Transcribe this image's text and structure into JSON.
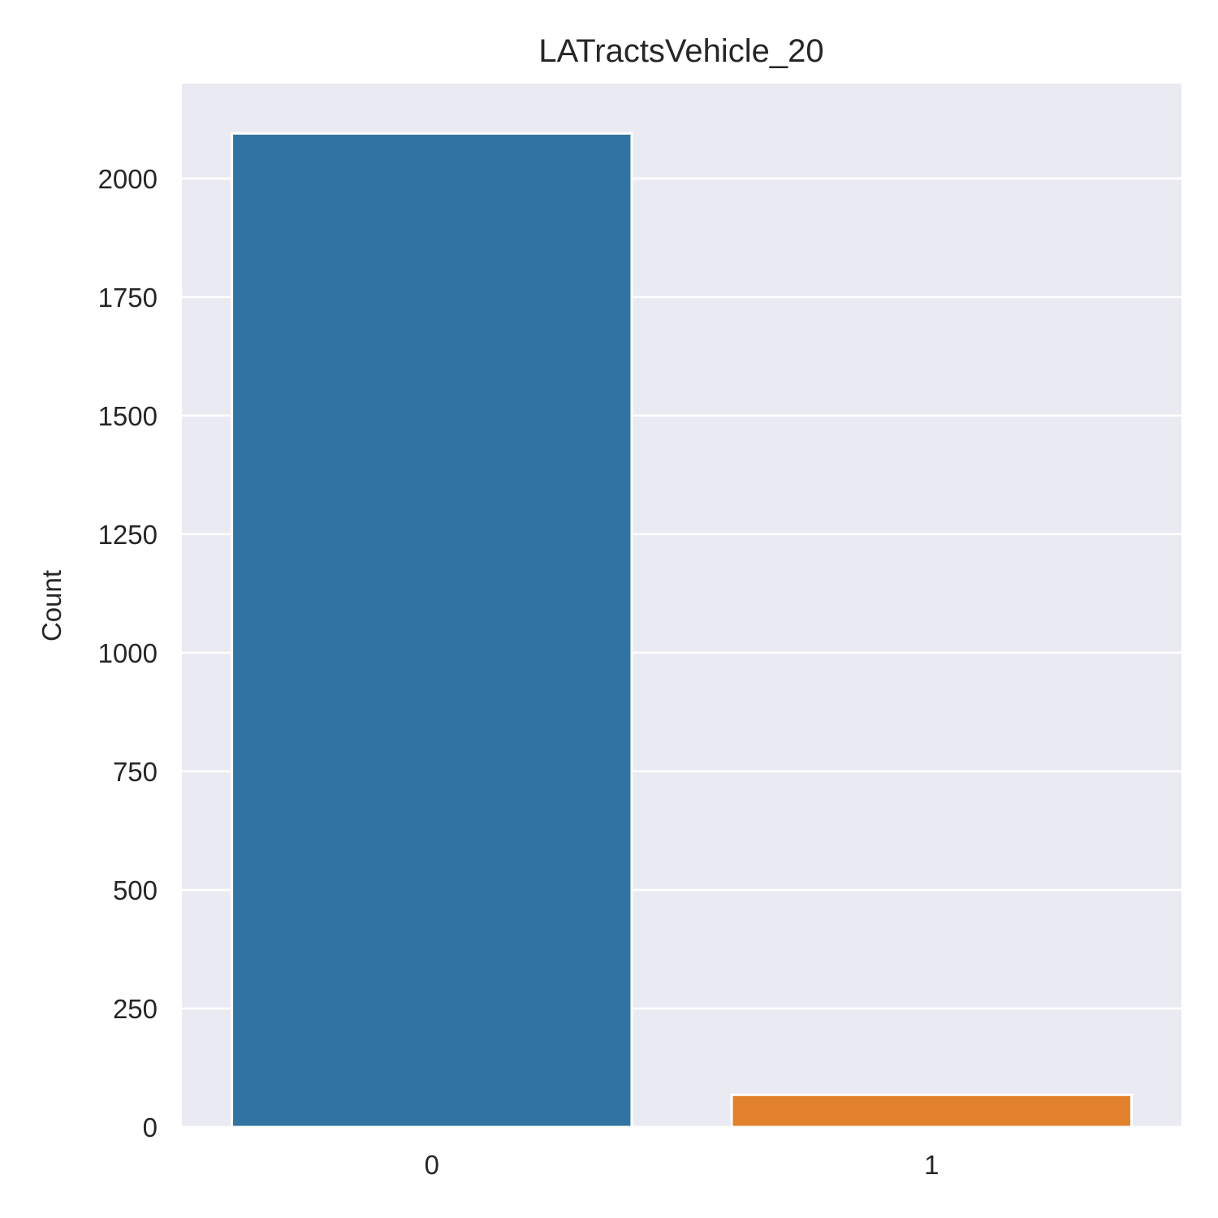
{
  "chart_data": {
    "type": "bar",
    "title": "LATractsVehicle_20",
    "xlabel": "",
    "ylabel": "Count",
    "categories": [
      "0",
      "1"
    ],
    "values": [
      2095,
      68
    ],
    "colors": [
      "#3274a1",
      "#e1812c"
    ],
    "ylim": [
      0,
      2200
    ],
    "yticks": [
      0,
      250,
      500,
      750,
      1000,
      1250,
      1500,
      1750,
      2000
    ],
    "grid": true,
    "background": "#eaeaf2"
  }
}
